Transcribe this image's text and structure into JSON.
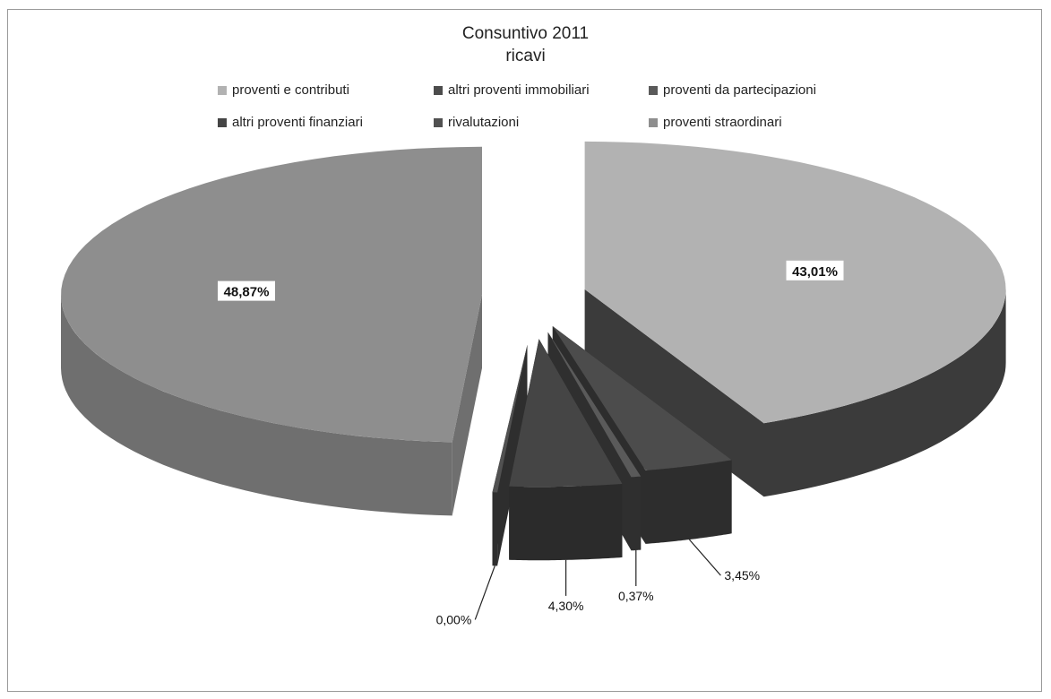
{
  "chart_data": {
    "type": "pie",
    "title": "Consuntivo 2011",
    "subtitle": "ricavi",
    "legend_position": "top",
    "categories": [
      "proventi e contributi",
      "altri proventi immobiliari",
      "proventi da partecipazioni",
      "altri proventi finanziari",
      "rivalutazioni",
      "proventi straordinari"
    ],
    "values": [
      43.01,
      3.45,
      0.37,
      4.3,
      0.0,
      48.87
    ],
    "data_labels": [
      "43,01%",
      "3,45%",
      "0,37%",
      "4,30%",
      "0,00%",
      "48,87%"
    ],
    "colors": [
      "#b2b2b2",
      "#4c4c4c",
      "#5a5a5a",
      "#454545",
      "#515151",
      "#8e8e8e"
    ],
    "side_colors": [
      "#3b3b3b",
      "#2d2d2d",
      "#2f2f2f",
      "#2b2b2b",
      "#2e2e2e",
      "#6f6f6f"
    ]
  }
}
